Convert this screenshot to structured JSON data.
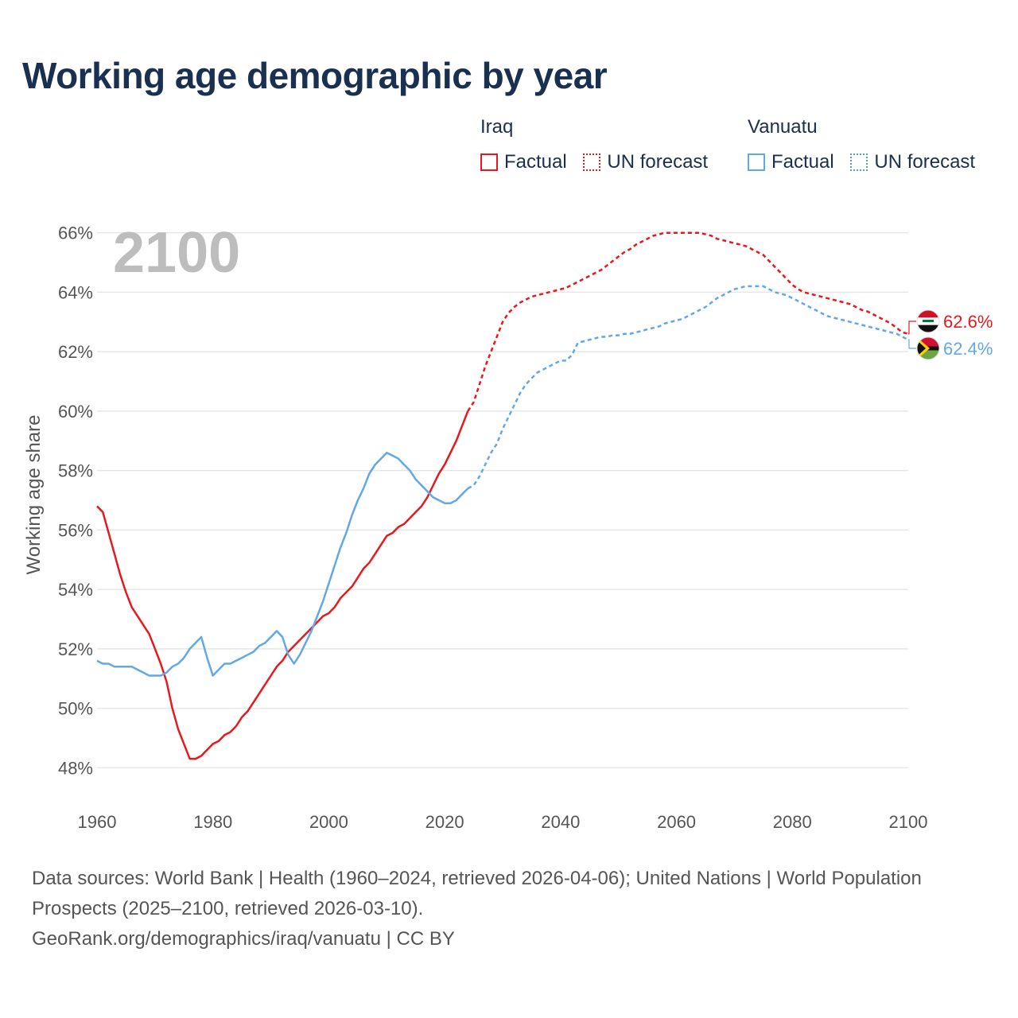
{
  "title": "Working age demographic by year",
  "legend": [
    {
      "country": "Iraq",
      "factual_label": "Factual",
      "forecast_label": "UN forecast",
      "color": "#e8191e"
    },
    {
      "country": "Vanuatu",
      "factual_label": "Factual",
      "forecast_label": "UN forecast",
      "color": "#62a8e6"
    }
  ],
  "footer": {
    "sources": "Data sources: World Bank | Health (1960–2024, retrieved 2026-04-06); United Nations | World Population Prospects (2025–2100, retrieved 2026-03-10).",
    "credit": "GeoRank.org/demographics/iraq/vanuatu | CC BY"
  },
  "chart_data": {
    "type": "line",
    "title": "Working age demographic by year",
    "xlabel": "",
    "ylabel": "Working age share",
    "year_watermark": "2100",
    "xlim": [
      1960,
      2100
    ],
    "ylim": [
      47.5,
      66.5
    ],
    "x_ticks": [
      "1960",
      "1980",
      "2000",
      "2020",
      "2040",
      "2060",
      "2080",
      "2100"
    ],
    "y_ticks": [
      "48%",
      "50%",
      "52%",
      "54%",
      "56%",
      "58%",
      "60%",
      "62%",
      "64%",
      "66%"
    ],
    "grid": true,
    "forecast_start": 2024,
    "series": [
      {
        "name": "Iraq",
        "color": "#e8191e",
        "end_label": "62.6%",
        "points": [
          [
            1960,
            56.8
          ],
          [
            1961,
            56.6
          ],
          [
            1962,
            55.9
          ],
          [
            1963,
            55.2
          ],
          [
            1964,
            54.5
          ],
          [
            1965,
            53.9
          ],
          [
            1966,
            53.4
          ],
          [
            1967,
            53.1
          ],
          [
            1968,
            52.8
          ],
          [
            1969,
            52.5
          ],
          [
            1970,
            52.0
          ],
          [
            1971,
            51.5
          ],
          [
            1972,
            50.9
          ],
          [
            1973,
            50.0
          ],
          [
            1974,
            49.3
          ],
          [
            1975,
            48.8
          ],
          [
            1976,
            48.3
          ],
          [
            1977,
            48.3
          ],
          [
            1978,
            48.4
          ],
          [
            1979,
            48.6
          ],
          [
            1980,
            48.8
          ],
          [
            1981,
            48.9
          ],
          [
            1982,
            49.1
          ],
          [
            1983,
            49.2
          ],
          [
            1984,
            49.4
          ],
          [
            1985,
            49.7
          ],
          [
            1986,
            49.9
          ],
          [
            1987,
            50.2
          ],
          [
            1988,
            50.5
          ],
          [
            1989,
            50.8
          ],
          [
            1990,
            51.1
          ],
          [
            1991,
            51.4
          ],
          [
            1992,
            51.6
          ],
          [
            1993,
            51.9
          ],
          [
            1994,
            52.1
          ],
          [
            1995,
            52.3
          ],
          [
            1996,
            52.5
          ],
          [
            1997,
            52.7
          ],
          [
            1998,
            52.9
          ],
          [
            1999,
            53.1
          ],
          [
            2000,
            53.2
          ],
          [
            2001,
            53.4
          ],
          [
            2002,
            53.7
          ],
          [
            2003,
            53.9
          ],
          [
            2004,
            54.1
          ],
          [
            2005,
            54.4
          ],
          [
            2006,
            54.7
          ],
          [
            2007,
            54.9
          ],
          [
            2008,
            55.2
          ],
          [
            2009,
            55.5
          ],
          [
            2010,
            55.8
          ],
          [
            2011,
            55.9
          ],
          [
            2012,
            56.1
          ],
          [
            2013,
            56.2
          ],
          [
            2014,
            56.4
          ],
          [
            2015,
            56.6
          ],
          [
            2016,
            56.8
          ],
          [
            2017,
            57.1
          ],
          [
            2018,
            57.5
          ],
          [
            2019,
            57.9
          ],
          [
            2020,
            58.2
          ],
          [
            2021,
            58.6
          ],
          [
            2022,
            59.0
          ],
          [
            2023,
            59.5
          ],
          [
            2024,
            60.0
          ],
          [
            2025,
            60.3
          ],
          [
            2026,
            60.9
          ],
          [
            2027,
            61.5
          ],
          [
            2028,
            62.0
          ],
          [
            2029,
            62.5
          ],
          [
            2030,
            63.0
          ],
          [
            2031,
            63.3
          ],
          [
            2032,
            63.5
          ],
          [
            2033,
            63.65
          ],
          [
            2034,
            63.75
          ],
          [
            2035,
            63.85
          ],
          [
            2036,
            63.9
          ],
          [
            2037,
            63.95
          ],
          [
            2038,
            64.0
          ],
          [
            2039,
            64.05
          ],
          [
            2040,
            64.1
          ],
          [
            2041,
            64.15
          ],
          [
            2042,
            64.25
          ],
          [
            2043,
            64.35
          ],
          [
            2044,
            64.45
          ],
          [
            2045,
            64.55
          ],
          [
            2046,
            64.65
          ],
          [
            2047,
            64.75
          ],
          [
            2048,
            64.9
          ],
          [
            2049,
            65.05
          ],
          [
            2050,
            65.2
          ],
          [
            2051,
            65.35
          ],
          [
            2052,
            65.45
          ],
          [
            2053,
            65.6
          ],
          [
            2054,
            65.7
          ],
          [
            2055,
            65.8
          ],
          [
            2056,
            65.9
          ],
          [
            2057,
            65.95
          ],
          [
            2058,
            66.0
          ],
          [
            2059,
            66.0
          ],
          [
            2060,
            66.0
          ],
          [
            2061,
            66.0
          ],
          [
            2062,
            66.0
          ],
          [
            2063,
            66.0
          ],
          [
            2064,
            66.0
          ],
          [
            2065,
            65.95
          ],
          [
            2066,
            65.9
          ],
          [
            2067,
            65.8
          ],
          [
            2068,
            65.75
          ],
          [
            2069,
            65.7
          ],
          [
            2070,
            65.65
          ],
          [
            2071,
            65.6
          ],
          [
            2072,
            65.55
          ],
          [
            2073,
            65.45
          ],
          [
            2074,
            65.35
          ],
          [
            2075,
            65.25
          ],
          [
            2076,
            65.05
          ],
          [
            2077,
            64.85
          ],
          [
            2078,
            64.65
          ],
          [
            2079,
            64.45
          ],
          [
            2080,
            64.25
          ],
          [
            2081,
            64.1
          ],
          [
            2082,
            64.0
          ],
          [
            2083,
            63.95
          ],
          [
            2084,
            63.9
          ],
          [
            2085,
            63.85
          ],
          [
            2086,
            63.8
          ],
          [
            2087,
            63.75
          ],
          [
            2088,
            63.7
          ],
          [
            2089,
            63.65
          ],
          [
            2090,
            63.6
          ],
          [
            2091,
            63.5
          ],
          [
            2092,
            63.4
          ],
          [
            2093,
            63.35
          ],
          [
            2094,
            63.25
          ],
          [
            2095,
            63.15
          ],
          [
            2096,
            63.05
          ],
          [
            2097,
            62.95
          ],
          [
            2098,
            62.8
          ],
          [
            2099,
            62.65
          ],
          [
            2100,
            62.6
          ]
        ]
      },
      {
        "name": "Vanuatu",
        "color": "#62a8e6",
        "end_label": "62.4%",
        "points": [
          [
            1960,
            51.6
          ],
          [
            1961,
            51.5
          ],
          [
            1962,
            51.5
          ],
          [
            1963,
            51.4
          ],
          [
            1964,
            51.4
          ],
          [
            1965,
            51.4
          ],
          [
            1966,
            51.4
          ],
          [
            1967,
            51.3
          ],
          [
            1968,
            51.2
          ],
          [
            1969,
            51.1
          ],
          [
            1970,
            51.1
          ],
          [
            1971,
            51.1
          ],
          [
            1972,
            51.2
          ],
          [
            1973,
            51.4
          ],
          [
            1974,
            51.5
          ],
          [
            1975,
            51.7
          ],
          [
            1976,
            52.0
          ],
          [
            1977,
            52.2
          ],
          [
            1978,
            52.4
          ],
          [
            1979,
            51.7
          ],
          [
            1980,
            51.1
          ],
          [
            1981,
            51.3
          ],
          [
            1982,
            51.5
          ],
          [
            1983,
            51.5
          ],
          [
            1984,
            51.6
          ],
          [
            1985,
            51.7
          ],
          [
            1986,
            51.8
          ],
          [
            1987,
            51.9
          ],
          [
            1988,
            52.1
          ],
          [
            1989,
            52.2
          ],
          [
            1990,
            52.4
          ],
          [
            1991,
            52.6
          ],
          [
            1992,
            52.4
          ],
          [
            1993,
            51.8
          ],
          [
            1994,
            51.5
          ],
          [
            1995,
            51.8
          ],
          [
            1996,
            52.2
          ],
          [
            1997,
            52.6
          ],
          [
            1998,
            53.1
          ],
          [
            1999,
            53.6
          ],
          [
            2000,
            54.2
          ],
          [
            2001,
            54.8
          ],
          [
            2002,
            55.4
          ],
          [
            2003,
            55.9
          ],
          [
            2004,
            56.5
          ],
          [
            2005,
            57.0
          ],
          [
            2006,
            57.4
          ],
          [
            2007,
            57.9
          ],
          [
            2008,
            58.2
          ],
          [
            2009,
            58.4
          ],
          [
            2010,
            58.6
          ],
          [
            2011,
            58.5
          ],
          [
            2012,
            58.4
          ],
          [
            2013,
            58.2
          ],
          [
            2014,
            58.0
          ],
          [
            2015,
            57.7
          ],
          [
            2016,
            57.5
          ],
          [
            2017,
            57.3
          ],
          [
            2018,
            57.1
          ],
          [
            2019,
            57.0
          ],
          [
            2020,
            56.9
          ],
          [
            2021,
            56.9
          ],
          [
            2022,
            57.0
          ],
          [
            2023,
            57.2
          ],
          [
            2024,
            57.4
          ],
          [
            2025,
            57.5
          ],
          [
            2026,
            57.8
          ],
          [
            2027,
            58.2
          ],
          [
            2028,
            58.6
          ],
          [
            2029,
            58.9
          ],
          [
            2030,
            59.4
          ],
          [
            2031,
            59.8
          ],
          [
            2032,
            60.2
          ],
          [
            2033,
            60.6
          ],
          [
            2034,
            60.9
          ],
          [
            2035,
            61.1
          ],
          [
            2036,
            61.3
          ],
          [
            2037,
            61.4
          ],
          [
            2038,
            61.5
          ],
          [
            2039,
            61.6
          ],
          [
            2040,
            61.7
          ],
          [
            2041,
            61.7
          ],
          [
            2042,
            61.9
          ],
          [
            2043,
            62.3
          ],
          [
            2044,
            62.35
          ],
          [
            2045,
            62.4
          ],
          [
            2046,
            62.45
          ],
          [
            2047,
            62.5
          ],
          [
            2048,
            62.5
          ],
          [
            2049,
            62.55
          ],
          [
            2050,
            62.55
          ],
          [
            2051,
            62.6
          ],
          [
            2052,
            62.6
          ],
          [
            2053,
            62.65
          ],
          [
            2054,
            62.7
          ],
          [
            2055,
            62.75
          ],
          [
            2056,
            62.8
          ],
          [
            2057,
            62.85
          ],
          [
            2058,
            62.95
          ],
          [
            2059,
            63.0
          ],
          [
            2060,
            63.05
          ],
          [
            2061,
            63.1
          ],
          [
            2062,
            63.2
          ],
          [
            2063,
            63.3
          ],
          [
            2064,
            63.4
          ],
          [
            2065,
            63.5
          ],
          [
            2066,
            63.65
          ],
          [
            2067,
            63.8
          ],
          [
            2068,
            63.9
          ],
          [
            2069,
            64.0
          ],
          [
            2070,
            64.1
          ],
          [
            2071,
            64.15
          ],
          [
            2072,
            64.2
          ],
          [
            2073,
            64.2
          ],
          [
            2074,
            64.2
          ],
          [
            2075,
            64.2
          ],
          [
            2076,
            64.1
          ],
          [
            2077,
            64.0
          ],
          [
            2078,
            63.95
          ],
          [
            2079,
            63.9
          ],
          [
            2080,
            63.8
          ],
          [
            2081,
            63.7
          ],
          [
            2082,
            63.6
          ],
          [
            2083,
            63.5
          ],
          [
            2084,
            63.4
          ],
          [
            2085,
            63.3
          ],
          [
            2086,
            63.2
          ],
          [
            2087,
            63.15
          ],
          [
            2088,
            63.1
          ],
          [
            2089,
            63.05
          ],
          [
            2090,
            63.0
          ],
          [
            2091,
            62.95
          ],
          [
            2092,
            62.9
          ],
          [
            2093,
            62.85
          ],
          [
            2094,
            62.8
          ],
          [
            2095,
            62.75
          ],
          [
            2096,
            62.7
          ],
          [
            2097,
            62.65
          ],
          [
            2098,
            62.6
          ],
          [
            2099,
            62.5
          ],
          [
            2100,
            62.4
          ]
        ]
      }
    ]
  }
}
